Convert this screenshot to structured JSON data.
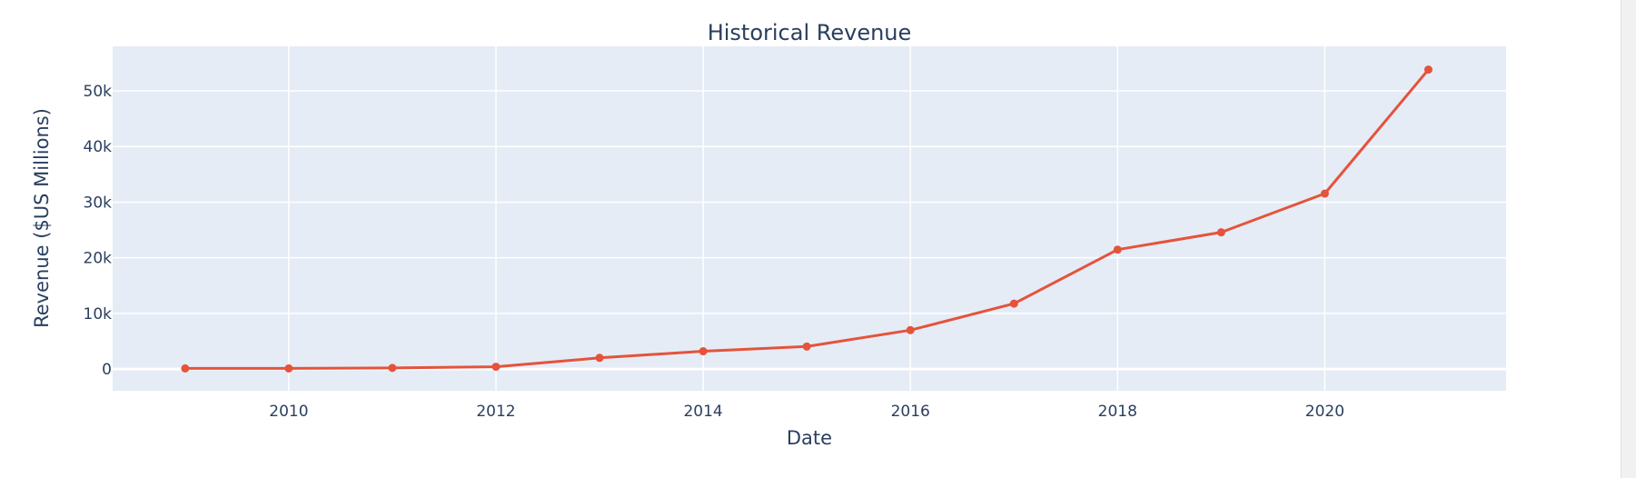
{
  "chart_data": {
    "type": "line",
    "title": "Historical Revenue",
    "xlabel": "Date",
    "ylabel": "Revenue ($US Millions)",
    "x": [
      2009,
      2010,
      2011,
      2012,
      2013,
      2014,
      2015,
      2016,
      2017,
      2018,
      2019,
      2020,
      2021
    ],
    "series": [
      {
        "values": [
          112,
          117,
          204,
          413,
          2013,
          3198,
          4046,
          7000,
          11759,
          21461,
          24578,
          31536,
          53823
        ],
        "color": "#e5533b"
      }
    ],
    "xlim": [
      2008.3,
      2021.75
    ],
    "ylim": [
      -3900,
      58000
    ],
    "xticks": [
      2010,
      2012,
      2014,
      2016,
      2018,
      2020
    ],
    "xtick_labels": [
      "2010",
      "2012",
      "2014",
      "2016",
      "2018",
      "2020"
    ],
    "yticks": [
      0,
      10000,
      20000,
      30000,
      40000,
      50000
    ],
    "ytick_labels": [
      "0",
      "10k",
      "20k",
      "30k",
      "40k",
      "50k"
    ],
    "grid": true,
    "plot_background": "#e5ecf6",
    "gridline_color": "#ffffff",
    "text_color": "#2a3f5f"
  }
}
